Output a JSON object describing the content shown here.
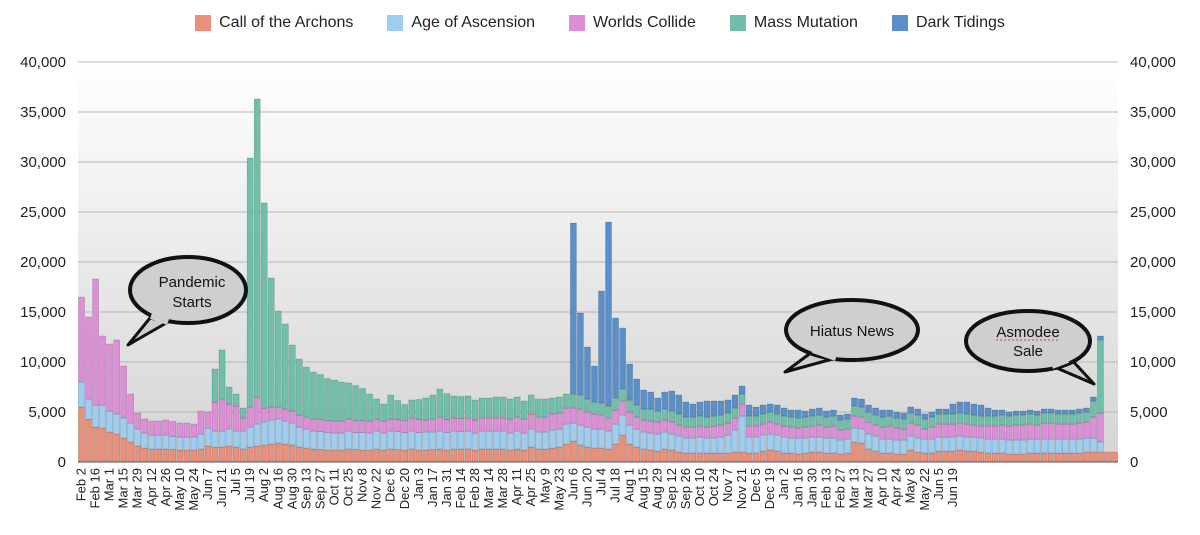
{
  "chart_data": {
    "type": "bar",
    "stacked": true,
    "title": "",
    "xlabel": "",
    "ylabel": "",
    "ylim": [
      0,
      40000
    ],
    "y_ticks": [
      "0",
      "5,000",
      "10,000",
      "15,000",
      "20,000",
      "25,000",
      "30,000",
      "35,000",
      "40,000"
    ],
    "y_tick_values": [
      0,
      5000,
      10000,
      15000,
      20000,
      25000,
      30000,
      35000,
      40000
    ],
    "legend_position": "top",
    "series": [
      {
        "name": "Call of the Archons",
        "color": "#e8907a",
        "values": [
          5500,
          4300,
          3500,
          3400,
          3000,
          2800,
          2400,
          2000,
          1600,
          1400,
          1300,
          1300,
          1300,
          1250,
          1200,
          1200,
          1200,
          1300,
          1600,
          1500,
          1500,
          1600,
          1500,
          1300,
          1500,
          1600,
          1700,
          1800,
          1900,
          1800,
          1700,
          1500,
          1400,
          1300,
          1250,
          1200,
          1200,
          1200,
          1300,
          1250,
          1200,
          1200,
          1300,
          1200,
          1300,
          1250,
          1200,
          1300,
          1200,
          1200,
          1250,
          1300,
          1200,
          1300,
          1300,
          1300,
          1200,
          1300,
          1300,
          1300,
          1300,
          1200,
          1300,
          1200,
          1500,
          1300,
          1300,
          1400,
          1500,
          1800,
          2100,
          1700,
          1500,
          1400,
          1400,
          1300,
          1800,
          2700,
          1800,
          1500,
          1300,
          1200,
          1100,
          1300,
          1200,
          1000,
          900,
          900,
          900,
          900,
          900,
          900,
          900,
          1000,
          1000,
          900,
          900,
          1100,
          1200,
          1100,
          900,
          900,
          800,
          900,
          1000,
          1000,
          900,
          900,
          800,
          900,
          2000,
          1900,
          1300,
          1100,
          900,
          900,
          800,
          800,
          1200,
          1000,
          900,
          900,
          1100,
          1100,
          1100,
          1200,
          1100,
          1100,
          1000,
          900,
          900,
          900,
          800,
          800,
          800,
          900,
          900,
          900,
          900,
          900,
          900,
          900,
          900,
          1000,
          1000,
          1000,
          1000,
          1000
        ]
      },
      {
        "name": "Age of Ascension",
        "color": "#9fcdf0",
        "values": [
          2500,
          2000,
          2200,
          2300,
          2100,
          2000,
          2000,
          1900,
          1700,
          1500,
          1400,
          1400,
          1400,
          1300,
          1300,
          1300,
          1300,
          1500,
          1800,
          1600,
          1600,
          1700,
          1600,
          1800,
          2000,
          2200,
          2300,
          2400,
          2400,
          2300,
          2200,
          2000,
          1900,
          1800,
          1800,
          1750,
          1700,
          1700,
          1800,
          1700,
          1750,
          1700,
          1800,
          1700,
          1800,
          1800,
          1750,
          1800,
          1750,
          1800,
          1750,
          1800,
          1750,
          1800,
          1750,
          1800,
          1700,
          1800,
          1800,
          1800,
          1800,
          1700,
          1800,
          1700,
          1800,
          1700,
          1700,
          1800,
          1800,
          2000,
          1800,
          2000,
          2000,
          1900,
          1900,
          1800,
          2000,
          2000,
          1900,
          1800,
          1700,
          1700,
          1700,
          1700,
          1600,
          1600,
          1500,
          1500,
          1600,
          1500,
          1500,
          1600,
          1800,
          2200,
          3600,
          1600,
          1600,
          1600,
          1600,
          1600,
          1600,
          1500,
          1600,
          1500,
          1500,
          1500,
          1500,
          1500,
          1400,
          1400,
          1400,
          1400,
          1500,
          1500,
          1400,
          1400,
          1400,
          1400,
          1400,
          1400,
          1400,
          1400,
          1400,
          1400,
          1400,
          1400,
          1400,
          1400,
          1400,
          1400,
          1400,
          1400,
          1400,
          1400,
          1400,
          1400,
          1400,
          1400,
          1400,
          1400,
          1400,
          1400,
          1400,
          1400,
          1400,
          1000
        ]
      },
      {
        "name": "Worlds Collide",
        "color": "#dc8fd6",
        "values": [
          8500,
          8200,
          12600,
          6900,
          6700,
          7400,
          5200,
          2900,
          1600,
          1400,
          1400,
          1400,
          1500,
          1500,
          1400,
          1400,
          1300,
          2300,
          1600,
          2900,
          3200,
          2500,
          2500,
          1300,
          2000,
          2700,
          1400,
          1300,
          1200,
          1200,
          1200,
          1200,
          1200,
          1200,
          1200,
          1200,
          1200,
          1200,
          1200,
          1200,
          1200,
          1200,
          1200,
          1200,
          1200,
          1200,
          1200,
          1300,
          1300,
          1200,
          1300,
          1400,
          1300,
          1300,
          1300,
          1300,
          1300,
          1300,
          1300,
          1300,
          1300,
          1400,
          1400,
          1400,
          1500,
          1500,
          1500,
          1600,
          1600,
          1600,
          1500,
          1600,
          1500,
          1500,
          1400,
          1300,
          1400,
          1400,
          1300,
          1200,
          1200,
          1200,
          1200,
          1200,
          1200,
          1100,
          1100,
          1100,
          1100,
          1100,
          1200,
          1200,
          1200,
          1200,
          1200,
          1100,
          1100,
          1100,
          1200,
          1100,
          1100,
          1100,
          1000,
          1100,
          1100,
          1200,
          1100,
          1200,
          1000,
          1000,
          1200,
          1200,
          1200,
          1100,
          1200,
          1300,
          1200,
          1100,
          1300,
          1300,
          1000,
          1200,
          1300,
          1300,
          1300,
          1300,
          1300,
          1200,
          1200,
          1300,
          1300,
          1400,
          1400,
          1500,
          1500,
          1500,
          1400,
          1600,
          1600,
          1500,
          1500,
          1500,
          1600,
          1600,
          2100,
          2900
        ]
      },
      {
        "name": "Mass Mutation",
        "color": "#6fbfaa",
        "values": [
          0,
          0,
          0,
          0,
          0,
          0,
          0,
          0,
          0,
          0,
          0,
          0,
          0,
          0,
          0,
          0,
          0,
          0,
          0,
          3300,
          4900,
          1700,
          1200,
          1000,
          24900,
          29800,
          20500,
          12900,
          9600,
          8500,
          6600,
          5600,
          5000,
          4700,
          4500,
          4200,
          4100,
          3900,
          3600,
          3500,
          3200,
          2700,
          2000,
          1700,
          2400,
          1900,
          1600,
          1800,
          2000,
          2200,
          2400,
          2800,
          2600,
          2200,
          2200,
          2200,
          2000,
          2000,
          2000,
          2100,
          2100,
          2000,
          2000,
          1800,
          1900,
          1800,
          1800,
          1600,
          1600,
          1400,
          1400,
          1400,
          1300,
          1200,
          1200,
          1200,
          1200,
          1200,
          1200,
          1200,
          1100,
          1200,
          1100,
          1100,
          1100,
          1100,
          1000,
          1000,
          1000,
          1000,
          1000,
          1000,
          1000,
          1000,
          1000,
          1000,
          1000,
          1000,
          1000,
          1000,
          1000,
          1000,
          1000,
          1000,
          1000,
          1000,
          1000,
          1000,
          1000,
          1000,
          1000,
          1000,
          1000,
          1000,
          1000,
          1000,
          1000,
          1000,
          1000,
          1000,
          1000,
          1000,
          1000,
          1000,
          1000,
          1000,
          1000,
          1000,
          1000,
          1000,
          1000,
          1000,
          1000,
          1000,
          1000,
          1000,
          1000,
          1000,
          1000,
          1000,
          1000,
          1000,
          1000,
          1000,
          1600,
          7300
        ]
      },
      {
        "name": "Dark Tidings",
        "color": "#5b8fc8",
        "values": [
          0,
          0,
          0,
          0,
          0,
          0,
          0,
          0,
          0,
          0,
          0,
          0,
          0,
          0,
          0,
          0,
          0,
          0,
          0,
          0,
          0,
          0,
          0,
          0,
          0,
          0,
          0,
          0,
          0,
          0,
          0,
          0,
          0,
          0,
          0,
          0,
          0,
          0,
          0,
          0,
          0,
          0,
          0,
          0,
          0,
          0,
          0,
          0,
          0,
          0,
          0,
          0,
          0,
          0,
          0,
          0,
          0,
          0,
          0,
          0,
          0,
          0,
          0,
          0,
          0,
          0,
          0,
          0,
          0,
          0,
          17100,
          8200,
          5200,
          3600,
          11200,
          18400,
          8000,
          6100,
          3600,
          2600,
          1900,
          1700,
          1300,
          1700,
          2000,
          1900,
          1500,
          1300,
          1400,
          1600,
          1500,
          1400,
          1300,
          1300,
          800,
          1100,
          900,
          900,
          800,
          900,
          800,
          700,
          800,
          600,
          700,
          700,
          600,
          600,
          500,
          500,
          800,
          800,
          700,
          700,
          700,
          600,
          600,
          600,
          600,
          600,
          500,
          500,
          500,
          500,
          1000,
          1100,
          1200,
          1100,
          1100,
          800,
          600,
          500,
          400,
          400,
          400,
          400,
          400,
          400,
          400,
          400,
          400,
          400,
          400,
          400,
          400,
          400
        ]
      }
    ],
    "x_tick_labels": [
      "Feb 2",
      "Feb 16",
      "Mar 1",
      "Mar 15",
      "Mar 29",
      "Apr 12",
      "Apr 26",
      "May 10",
      "May 24",
      "Jun 7",
      "Jun 21",
      "Jul 5",
      "Jul 19",
      "Aug 2",
      "Aug 16",
      "Aug 30",
      "Sep 13",
      "Sep 27",
      "Oct 11",
      "Oct 25",
      "Nov 8",
      "Nov 22",
      "Dec 6",
      "Dec 20",
      "Jan 3",
      "Jan 17",
      "Jan 31",
      "Feb 14",
      "Feb 28",
      "Mar 14",
      "Mar 28",
      "Apr 11",
      "Apr 25",
      "May 9",
      "May 23",
      "Jun 6",
      "Jun 20",
      "Jul 4",
      "Jul 18",
      "Aug 1",
      "Aug 15",
      "Aug 29",
      "Sep 12",
      "Sep 26",
      "Oct 10",
      "Oct 24",
      "Nov 7",
      "Nov 21",
      "Dec 5",
      "Dec 19",
      "Jan 2",
      "Jan 16",
      "Jan 30",
      "Feb 13",
      "Feb 27",
      "Mar 13",
      "Mar 27",
      "Apr 10",
      "Apr 24",
      "May 8",
      "May 22",
      "Jun 5",
      "Jun 19"
    ],
    "annotations": [
      {
        "text_lines": [
          "Pandemic",
          "Starts"
        ]
      },
      {
        "text_lines": [
          "Hiatus News"
        ]
      },
      {
        "text_lines": [
          "Asmodee",
          "Sale"
        ]
      }
    ]
  }
}
